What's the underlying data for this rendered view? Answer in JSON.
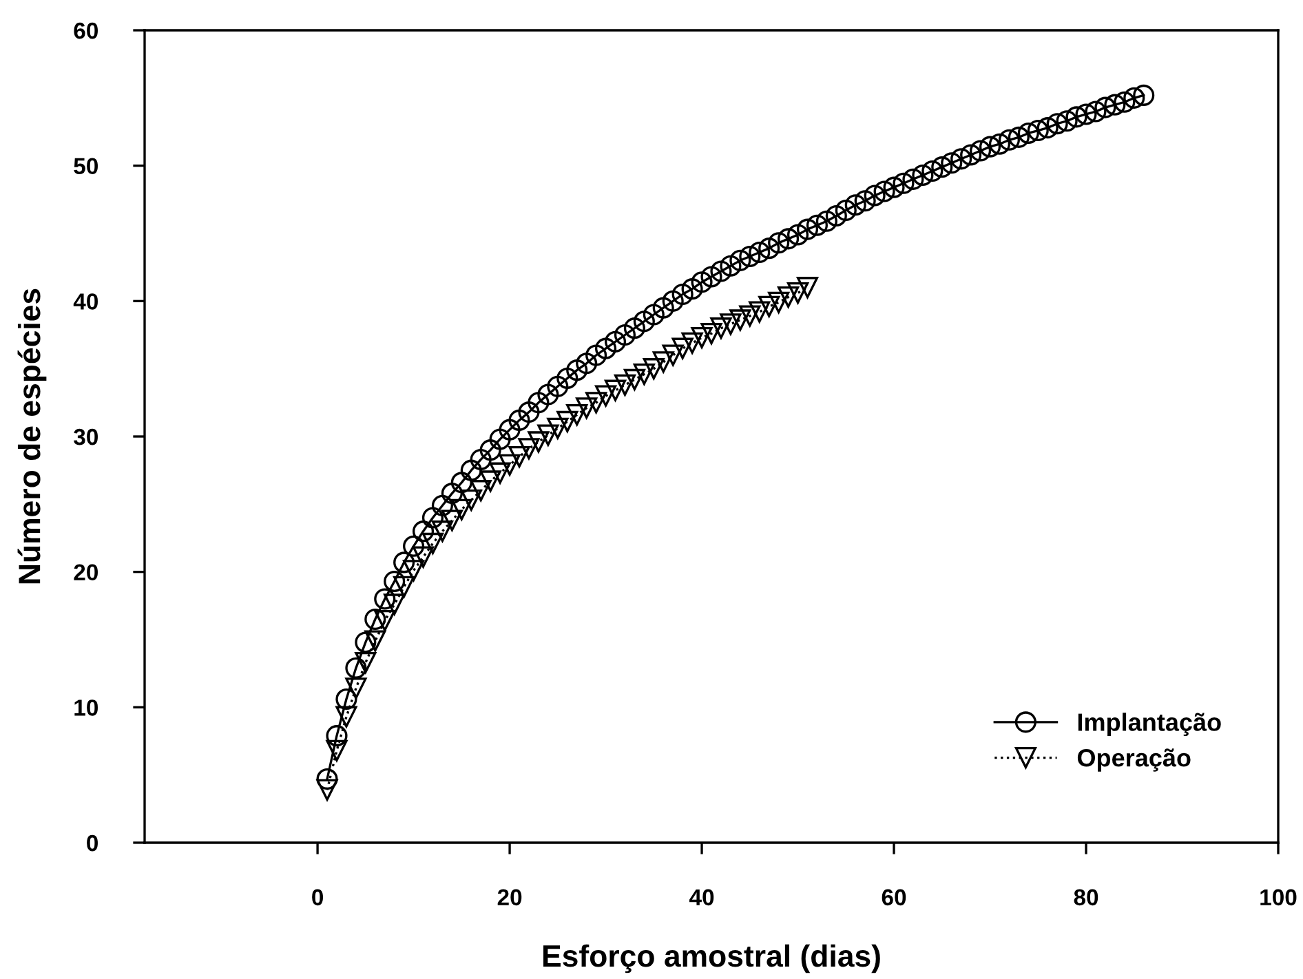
{
  "chart_data": {
    "type": "line",
    "xlabel": "Esforço amostral (dias)",
    "ylabel": "Número de espécies",
    "xlim": [
      -18,
      100
    ],
    "xticks": [
      0,
      20,
      40,
      60,
      80,
      100
    ],
    "ylim": [
      0,
      60
    ],
    "yticks": [
      0,
      10,
      20,
      30,
      40,
      50,
      60
    ],
    "grid": false,
    "legend": "bottom right",
    "series": [
      {
        "name": "Implantação",
        "color": "#000000",
        "marker": "circle",
        "line_style": "solid",
        "x": [
          1,
          2,
          3,
          4,
          5,
          6,
          7,
          8,
          9,
          10,
          11,
          12,
          13,
          14,
          15,
          16,
          17,
          18,
          19,
          20,
          21,
          22,
          23,
          24,
          25,
          26,
          27,
          28,
          29,
          30,
          31,
          32,
          33,
          34,
          35,
          36,
          37,
          38,
          39,
          40,
          41,
          42,
          43,
          44,
          45,
          46,
          47,
          48,
          49,
          50,
          51,
          52,
          53,
          54,
          55,
          56,
          57,
          58,
          59,
          60,
          61,
          62,
          63,
          64,
          65,
          66,
          67,
          68,
          69,
          70,
          71,
          72,
          73,
          74,
          75,
          76,
          77,
          78,
          79,
          80,
          81,
          82,
          83,
          84,
          85,
          86
        ],
        "values": [
          4.7,
          7.9,
          10.6,
          12.9,
          14.8,
          16.5,
          18.0,
          19.3,
          20.7,
          21.9,
          23.0,
          24.0,
          24.9,
          25.8,
          26.6,
          27.5,
          28.3,
          29.0,
          29.8,
          30.5,
          31.2,
          31.8,
          32.5,
          33.1,
          33.7,
          34.3,
          34.9,
          35.4,
          36.0,
          36.5,
          37.0,
          37.5,
          38.0,
          38.5,
          39.0,
          39.5,
          40.0,
          40.5,
          40.9,
          41.4,
          41.8,
          42.2,
          42.6,
          43.0,
          43.3,
          43.6,
          43.9,
          44.3,
          44.6,
          44.9,
          45.3,
          45.6,
          45.9,
          46.3,
          46.7,
          47.1,
          47.4,
          47.8,
          48.1,
          48.4,
          48.7,
          49.0,
          49.3,
          49.6,
          49.9,
          50.2,
          50.5,
          50.8,
          51.1,
          51.4,
          51.6,
          51.9,
          52.1,
          52.4,
          52.6,
          52.8,
          53.1,
          53.3,
          53.6,
          53.8,
          54.0,
          54.3,
          54.5,
          54.7,
          55.0,
          55.2
        ]
      },
      {
        "name": "Operação",
        "color": "#000000",
        "marker": "triangle",
        "line_style": "dotted",
        "x": [
          1,
          2,
          3,
          4,
          5,
          6,
          7,
          8,
          9,
          10,
          11,
          12,
          13,
          14,
          15,
          16,
          17,
          18,
          19,
          20,
          21,
          22,
          23,
          24,
          25,
          26,
          27,
          28,
          29,
          30,
          31,
          32,
          33,
          34,
          35,
          36,
          37,
          38,
          39,
          40,
          41,
          42,
          43,
          44,
          45,
          46,
          47,
          48,
          49,
          50,
          51
        ],
        "values": [
          3.9,
          6.8,
          9.3,
          11.4,
          13.3,
          14.9,
          16.4,
          17.6,
          18.9,
          20.1,
          21.1,
          22.1,
          23.0,
          23.8,
          24.6,
          25.3,
          26.0,
          26.7,
          27.3,
          27.9,
          28.5,
          29.1,
          29.6,
          30.1,
          30.6,
          31.1,
          31.6,
          32.1,
          32.5,
          33.0,
          33.4,
          33.8,
          34.2,
          34.6,
          35.0,
          35.5,
          36.0,
          36.5,
          36.9,
          37.3,
          37.6,
          38.0,
          38.3,
          38.6,
          38.9,
          39.2,
          39.6,
          39.9,
          40.3,
          40.6,
          41.0
        ]
      }
    ]
  }
}
